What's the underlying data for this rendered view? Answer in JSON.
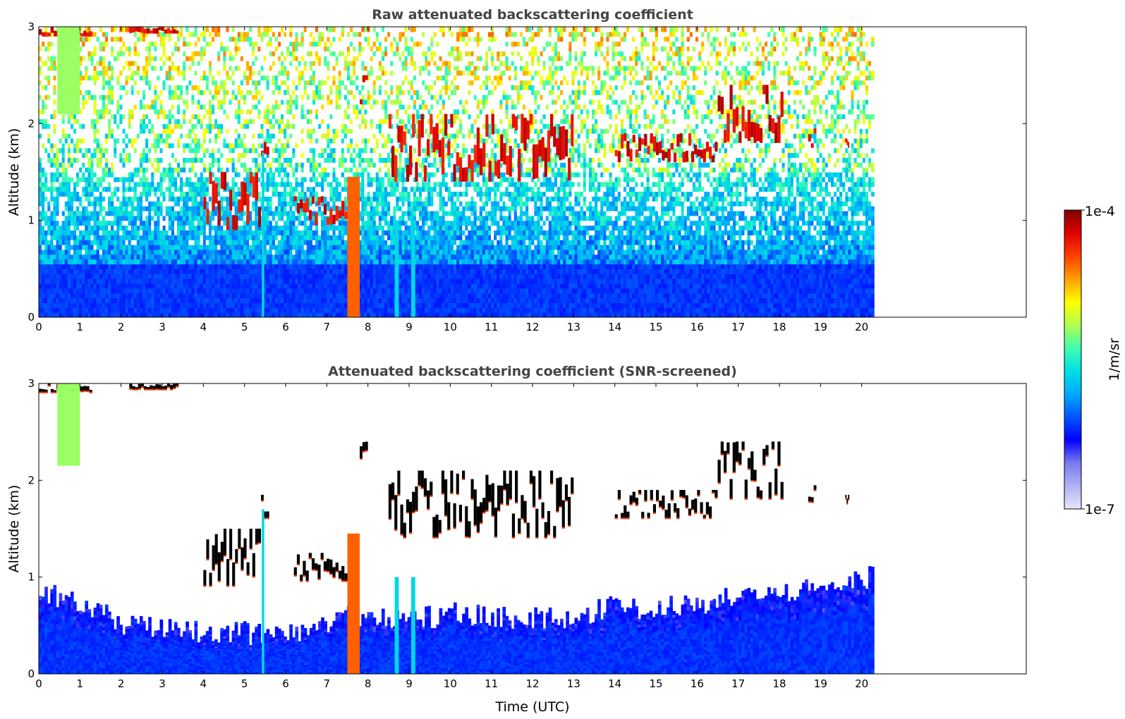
{
  "chart_data": [
    {
      "type": "heatmap",
      "title": "Raw attenuated backscattering coefficient",
      "xlabel": "",
      "ylabel": "Altitude (km)",
      "xlim": [
        0,
        24
      ],
      "ylim": [
        0,
        3
      ],
      "xticks": [
        "0",
        "1",
        "2",
        "3",
        "4",
        "5",
        "6",
        "7",
        "8",
        "9",
        "10",
        "11",
        "12",
        "13",
        "14",
        "15",
        "16",
        "17",
        "18",
        "19",
        "20"
      ],
      "yticks": [
        "0",
        "1",
        "2",
        "3"
      ],
      "data_extent_time_h": [
        0,
        20.3
      ],
      "background_layer": {
        "top_km": 0.55,
        "fade_top_km": 1.5,
        "level": "low",
        "color_at_surface": "#1a2bf0"
      },
      "noise_above_km": 1.2,
      "features": [
        {
          "kind": "cloud",
          "t": [
            0.0,
            1.3
          ],
          "alt_km": [
            2.9,
            3.0
          ],
          "level": "max"
        },
        {
          "kind": "cloud",
          "t": [
            2.2,
            3.4
          ],
          "alt_km": [
            2.93,
            3.0
          ],
          "level": "max"
        },
        {
          "kind": "plume",
          "t": [
            0.45,
            1.0
          ],
          "alt_km": [
            2.1,
            3.0
          ],
          "level": "mid"
        },
        {
          "kind": "cloud",
          "t": [
            4.0,
            5.4
          ],
          "alt_km": [
            0.9,
            1.5
          ],
          "level": "max"
        },
        {
          "kind": "cloud",
          "t": [
            5.4,
            5.6
          ],
          "alt_km": [
            1.6,
            1.85
          ],
          "level": "max"
        },
        {
          "kind": "cloud",
          "t": [
            6.2,
            7.5
          ],
          "alt_km": [
            0.95,
            1.25
          ],
          "level": "max"
        },
        {
          "kind": "column",
          "t": [
            7.5,
            7.8
          ],
          "alt_km": [
            0.0,
            1.45
          ],
          "level": "high"
        },
        {
          "kind": "cloud",
          "t": [
            7.8,
            8.0
          ],
          "alt_km": [
            2.2,
            2.5
          ],
          "level": "max"
        },
        {
          "kind": "column",
          "t": [
            8.65,
            8.75
          ],
          "alt_km": [
            0.0,
            1.0
          ],
          "level": "low-mid"
        },
        {
          "kind": "column",
          "t": [
            9.05,
            9.15
          ],
          "alt_km": [
            0.0,
            1.0
          ],
          "level": "low-mid"
        },
        {
          "kind": "column",
          "t": [
            5.42,
            5.48
          ],
          "alt_km": [
            0.0,
            1.7
          ],
          "level": "low-mid"
        },
        {
          "kind": "cloud",
          "t": [
            8.5,
            13.0
          ],
          "alt_km": [
            1.4,
            2.1
          ],
          "level": "max"
        },
        {
          "kind": "cloud",
          "t": [
            14.0,
            16.5
          ],
          "alt_km": [
            1.6,
            1.9
          ],
          "level": "max"
        },
        {
          "kind": "cloud",
          "t": [
            16.5,
            18.1
          ],
          "alt_km": [
            1.8,
            2.4
          ],
          "level": "max"
        },
        {
          "kind": "cloud",
          "t": [
            18.7,
            18.9
          ],
          "alt_km": [
            1.75,
            1.95
          ],
          "level": "max"
        },
        {
          "kind": "cloud",
          "t": [
            19.6,
            19.7
          ],
          "alt_km": [
            1.75,
            1.85
          ],
          "level": "max"
        }
      ]
    },
    {
      "type": "heatmap",
      "title": "Attenuated backscattering coefficient (SNR-screened)",
      "xlabel": "Time (UTC)",
      "ylabel": "Altitude (km)",
      "xlim": [
        0,
        24
      ],
      "ylim": [
        0,
        3
      ],
      "xticks": [
        "0",
        "1",
        "2",
        "3",
        "4",
        "5",
        "6",
        "7",
        "8",
        "9",
        "10",
        "11",
        "12",
        "13",
        "14",
        "15",
        "16",
        "17",
        "18",
        "19",
        "20"
      ],
      "yticks": [
        "0",
        "1",
        "2",
        "3"
      ],
      "data_extent_time_h": [
        0,
        20.3
      ],
      "boundary_layer_top_km": [
        [
          0,
          0.85
        ],
        [
          1,
          0.72
        ],
        [
          2,
          0.52
        ],
        [
          3,
          0.45
        ],
        [
          4,
          0.43
        ],
        [
          5,
          0.42
        ],
        [
          6,
          0.4
        ],
        [
          7,
          0.55
        ],
        [
          8,
          0.62
        ],
        [
          9,
          0.55
        ],
        [
          10,
          0.62
        ],
        [
          11,
          0.6
        ],
        [
          12,
          0.58
        ],
        [
          13,
          0.6
        ],
        [
          14,
          0.7
        ],
        [
          15,
          0.68
        ],
        [
          16,
          0.72
        ],
        [
          17,
          0.82
        ],
        [
          18,
          0.85
        ],
        [
          19,
          0.9
        ],
        [
          20,
          1.0
        ],
        [
          20.3,
          1.0
        ]
      ],
      "features": [
        {
          "kind": "cloud",
          "t": [
            0.0,
            1.3
          ],
          "alt_km": [
            2.9,
            3.0
          ],
          "level": "black"
        },
        {
          "kind": "cloud",
          "t": [
            2.2,
            3.4
          ],
          "alt_km": [
            2.93,
            3.0
          ],
          "level": "black"
        },
        {
          "kind": "plume",
          "t": [
            0.45,
            1.0
          ],
          "alt_km": [
            2.15,
            3.0
          ],
          "level": "mid"
        },
        {
          "kind": "cloud",
          "t": [
            4.0,
            5.4
          ],
          "alt_km": [
            0.9,
            1.5
          ],
          "level": "black"
        },
        {
          "kind": "cloud",
          "t": [
            5.4,
            5.6
          ],
          "alt_km": [
            1.6,
            1.85
          ],
          "level": "black"
        },
        {
          "kind": "cloud",
          "t": [
            6.2,
            7.5
          ],
          "alt_km": [
            0.95,
            1.25
          ],
          "level": "black"
        },
        {
          "kind": "column",
          "t": [
            7.5,
            7.8
          ],
          "alt_km": [
            0.0,
            1.45
          ],
          "level": "high"
        },
        {
          "kind": "cloud",
          "t": [
            7.8,
            8.0
          ],
          "alt_km": [
            2.2,
            2.5
          ],
          "level": "black"
        },
        {
          "kind": "column",
          "t": [
            8.65,
            8.75
          ],
          "alt_km": [
            0.0,
            1.0
          ],
          "level": "low-mid"
        },
        {
          "kind": "column",
          "t": [
            9.05,
            9.15
          ],
          "alt_km": [
            0.0,
            1.0
          ],
          "level": "low-mid"
        },
        {
          "kind": "column",
          "t": [
            5.42,
            5.48
          ],
          "alt_km": [
            0.0,
            1.7
          ],
          "level": "low-mid"
        },
        {
          "kind": "cloud",
          "t": [
            8.5,
            13.0
          ],
          "alt_km": [
            1.4,
            2.1
          ],
          "level": "black"
        },
        {
          "kind": "cloud",
          "t": [
            14.0,
            16.5
          ],
          "alt_km": [
            1.6,
            1.9
          ],
          "level": "black"
        },
        {
          "kind": "cloud",
          "t": [
            16.5,
            18.1
          ],
          "alt_km": [
            1.8,
            2.4
          ],
          "level": "black"
        },
        {
          "kind": "cloud",
          "t": [
            18.7,
            18.9
          ],
          "alt_km": [
            1.75,
            1.95
          ],
          "level": "black"
        },
        {
          "kind": "cloud",
          "t": [
            19.6,
            19.7
          ],
          "alt_km": [
            1.75,
            1.85
          ],
          "level": "black"
        }
      ]
    }
  ],
  "colorbar": {
    "min_label": "1e-7",
    "max_label": "1e-4",
    "unit_label": "1/m/sr",
    "colormap": [
      "#e6e6fa",
      "#b0b0f5",
      "#7a7af0",
      "#0000ff",
      "#0055ff",
      "#00aaff",
      "#00e0e0",
      "#40ffb0",
      "#b0ff50",
      "#ffff00",
      "#ffa000",
      "#ff4000",
      "#e00000",
      "#800000"
    ]
  }
}
